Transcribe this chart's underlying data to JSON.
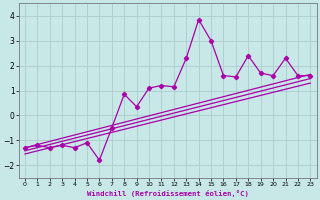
{
  "xlabel": "Windchill (Refroidissement éolien,°C)",
  "bg_color": "#c8e8e8",
  "line_color": "#aa00aa",
  "grid_color": "#aacccc",
  "xlim": [
    -0.5,
    23.5
  ],
  "ylim": [
    -2.5,
    4.5
  ],
  "yticks": [
    -2,
    -1,
    0,
    1,
    2,
    3,
    4
  ],
  "xticks": [
    0,
    1,
    2,
    3,
    4,
    5,
    6,
    7,
    8,
    9,
    10,
    11,
    12,
    13,
    14,
    15,
    16,
    17,
    18,
    19,
    20,
    21,
    22,
    23
  ],
  "series1_x": [
    0,
    1,
    2,
    3,
    4,
    5,
    6,
    7,
    8,
    9,
    10,
    11,
    12,
    13,
    14,
    15,
    16,
    17,
    18,
    19,
    20,
    21,
    22,
    23
  ],
  "series1_y": [
    -1.3,
    -1.2,
    -1.3,
    -1.2,
    -1.3,
    -1.1,
    -1.8,
    -0.5,
    0.85,
    0.35,
    1.1,
    1.2,
    1.15,
    2.3,
    3.85,
    3.0,
    1.6,
    1.55,
    2.4,
    1.7,
    1.6,
    2.3,
    1.6,
    1.6
  ],
  "regline1_x": [
    0,
    23
  ],
  "regline1_y": [
    -1.3,
    1.65
  ],
  "regline2_x": [
    0,
    23
  ],
  "regline2_y": [
    -1.42,
    1.48
  ],
  "regline3_x": [
    0,
    23
  ],
  "regline3_y": [
    -1.55,
    1.3
  ]
}
